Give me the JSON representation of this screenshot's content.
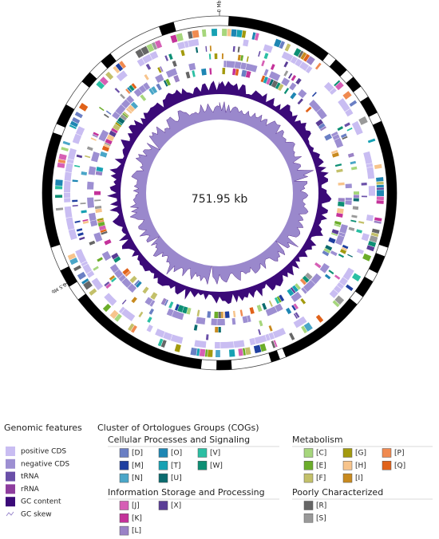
{
  "center_label": "751.95 kb",
  "scale_labels": [
    "0 Mb",
    "0.5 Mb"
  ],
  "legend": {
    "genomic_features": {
      "title": "Genomic features",
      "items": [
        {
          "label": "positive CDS",
          "color": "#c9bdf2"
        },
        {
          "label": "negative CDS",
          "color": "#9d8fd2"
        },
        {
          "label": "tRNA",
          "color": "#6a4fa8"
        },
        {
          "label": "rRNA",
          "color": "#8e3d9e"
        },
        {
          "label": "GC content",
          "color": "#3b0a78"
        },
        {
          "label": "GC skew",
          "color": "#9a88cc"
        }
      ]
    },
    "cogs": {
      "title": "Cluster of Ortologues Groups (COGs)",
      "groups": [
        {
          "title": "Cellular Processes and Signaling",
          "items": [
            {
              "label": "[D]",
              "color": "#6a7fc4"
            },
            {
              "label": "[M]",
              "color": "#1f3fa0"
            },
            {
              "label": "[N]",
              "color": "#4aa6c8"
            },
            {
              "label": "[O]",
              "color": "#1e86b3"
            },
            {
              "label": "[T]",
              "color": "#17a1b3"
            },
            {
              "label": "[U]",
              "color": "#0b6b6e"
            },
            {
              "label": "[V]",
              "color": "#2bbfa3"
            },
            {
              "label": "[W]",
              "color": "#0d8f74"
            }
          ]
        },
        {
          "title": "Metabolism",
          "items": [
            {
              "label": "[C]",
              "color": "#a6d67c"
            },
            {
              "label": "[E]",
              "color": "#6bad2a"
            },
            {
              "label": "[F]",
              "color": "#c3c06a"
            },
            {
              "label": "[G]",
              "color": "#a39a0e"
            },
            {
              "label": "[H]",
              "color": "#f7c48c"
            },
            {
              "label": "[I]",
              "color": "#c88a1e"
            },
            {
              "label": "[P]",
              "color": "#f08a50"
            },
            {
              "label": "[Q]",
              "color": "#e0621a"
            }
          ]
        },
        {
          "title": "Information Storage and Processing",
          "items": [
            {
              "label": "[J]",
              "color": "#d65fb5"
            },
            {
              "label": "[K]",
              "color": "#c4329a"
            },
            {
              "label": "[L]",
              "color": "#9a82c6"
            },
            {
              "label": "[X]",
              "color": "#5a3d96"
            }
          ]
        },
        {
          "title": "Poorly Characterized",
          "items": [
            {
              "label": "[R]",
              "color": "#666666"
            },
            {
              "label": "[S]",
              "color": "#999999"
            }
          ]
        }
      ]
    }
  }
}
